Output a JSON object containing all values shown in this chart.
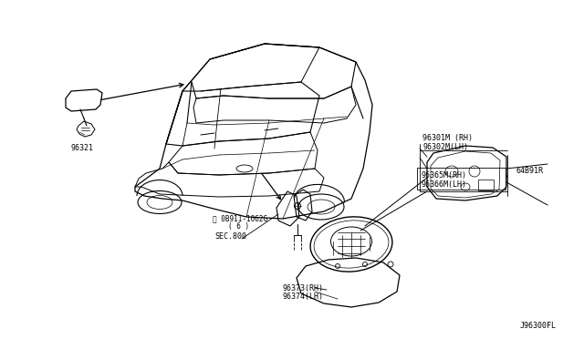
{
  "bg_color": "#ffffff",
  "fig_width": 6.4,
  "fig_height": 3.72,
  "dpi": 100,
  "labels": {
    "part_96321": "96321",
    "part_96301M": "96301M (RH)",
    "part_96302M": "96302M(LH)",
    "part_96365M": "96365M(RH)",
    "part_96366M": "96366M(LH)",
    "part_64B91R": "64B91R",
    "part_bolt1": "Ⓝ 0B911-1062G",
    "part_bolt2": "( 6 )",
    "part_sec800": "SEC.800",
    "part_96373": "96373(RH)",
    "part_96374": "96374(LH)",
    "part_J96300FL": "J96300FL"
  },
  "text_color": "#000000",
  "line_color": "#000000",
  "font_size": 6.0
}
